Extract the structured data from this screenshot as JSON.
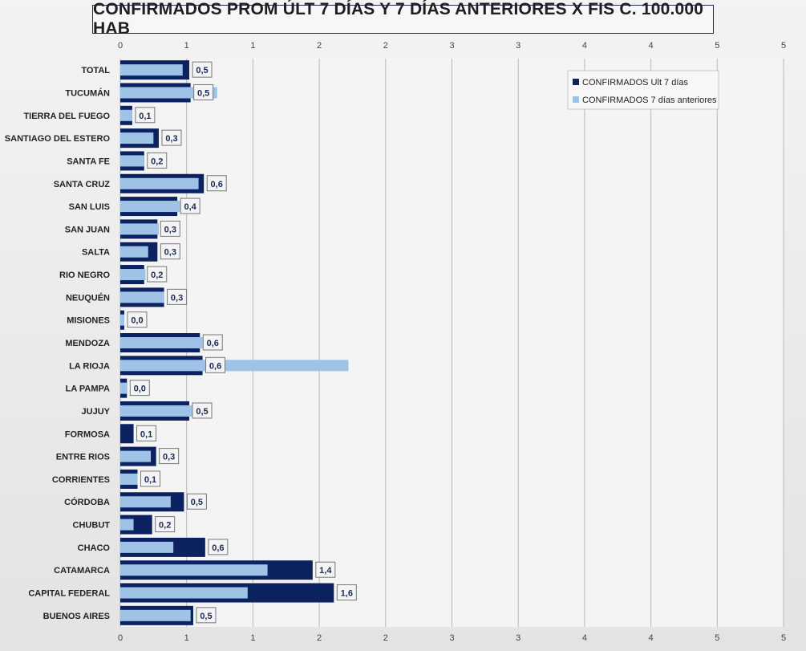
{
  "chart_data": {
    "type": "bar",
    "orientation": "horizontal",
    "title": "CONFIRMADOS PROM ÚLT 7 DÍAS Y 7 DÍAS ANTERIORES X FIS C. 100.000 HAB",
    "categories": [
      "TOTAL",
      "TUCUMÁN",
      "TIERRA  DEL FUEGO",
      "SANTIAGO  DEL ESTERO",
      "SANTA FE",
      "SANTA CRUZ",
      "SAN LUIS",
      "SAN JUAN",
      "SALTA",
      "RIO NEGRO",
      "NEUQUÉN",
      "MISIONES",
      "MENDOZA",
      "LA RIOJA",
      "LA PAMPA",
      "JUJUY",
      "FORMOSA",
      "ENTRE RIOS",
      "CORRIENTES",
      "CÓRDOBA",
      "CHUBUT",
      "CHACO",
      "CATAMARCA",
      "CAPITAL FEDERAL",
      "BUENOS AIRES"
    ],
    "series": [
      {
        "name": "CONFIRMADOS Ult 7 días",
        "color": "#0c2160",
        "values": [
          0.52,
          0.53,
          0.09,
          0.29,
          0.18,
          0.63,
          0.43,
          0.28,
          0.28,
          0.18,
          0.33,
          0.03,
          0.6,
          0.62,
          0.05,
          0.52,
          0.1,
          0.27,
          0.13,
          0.48,
          0.24,
          0.64,
          1.45,
          1.61,
          0.55
        ]
      },
      {
        "name": "CONFIRMADOS 7 días anteriores",
        "color": "#9fc3e6",
        "values": [
          0.47,
          0.73,
          0.09,
          0.25,
          0.18,
          0.59,
          0.45,
          0.29,
          0.21,
          0.19,
          0.33,
          0.03,
          0.62,
          1.72,
          0.05,
          0.54,
          0.0,
          0.23,
          0.13,
          0.38,
          0.1,
          0.4,
          1.11,
          0.96,
          0.53
        ]
      }
    ],
    "data_labels": [
      "0,5",
      "0,5",
      "0,1",
      "0,3",
      "0,2",
      "0,6",
      "0,4",
      "0,3",
      "0,3",
      "0,2",
      "0,3",
      "0,0",
      "0,6",
      "0,6",
      "0,0",
      "0,5",
      "0,1",
      "0,3",
      "0,1",
      "0,5",
      "0,2",
      "0,6",
      "1,4",
      "1,6",
      "0,5"
    ],
    "x_ticks": [
      0,
      0.5,
      1,
      1.5,
      2,
      2.5,
      3,
      3.5,
      4,
      4.5,
      5
    ],
    "x_tick_labels": [
      "0",
      "1",
      "1",
      "2",
      "2",
      "3",
      "3",
      "4",
      "4",
      "5",
      "5"
    ],
    "xlim": [
      0,
      5
    ],
    "grid": "vertical",
    "legend_position": "top-right"
  }
}
